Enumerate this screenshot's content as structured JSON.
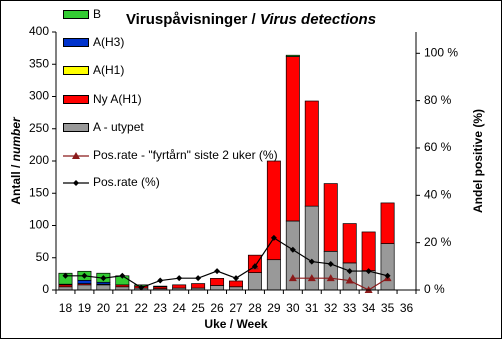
{
  "chart_data": {
    "type": "bar",
    "title": [
      "Viruspåvisninger / ",
      "Virus detections"
    ],
    "y_label": [
      "Antall / ",
      "number"
    ],
    "x_label": "Uke / Week",
    "y2_label": "Andel positive (%)",
    "categories": [
      "18",
      "19",
      "20",
      "21",
      "22",
      "23",
      "24",
      "25",
      "26",
      "27",
      "28",
      "29",
      "30",
      "31",
      "32",
      "33",
      "34",
      "35",
      "36"
    ],
    "ylim": [
      0,
      400
    ],
    "yticks": [
      0,
      50,
      100,
      150,
      200,
      250,
      300,
      350,
      400
    ],
    "y2lim": [
      0,
      109
    ],
    "y2ticks": [
      {
        "value": 0,
        "label": "0 %"
      },
      {
        "value": 20,
        "label": "20 %"
      },
      {
        "value": 40,
        "label": "40 %"
      },
      {
        "value": 60,
        "label": "60 %"
      },
      {
        "value": 80,
        "label": "80 %"
      },
      {
        "value": 100,
        "label": "100 %"
      }
    ],
    "series": [
      {
        "name": "A - utypet",
        "type": "bar",
        "color": "#999999",
        "values": [
          5,
          8,
          8,
          5,
          3,
          2,
          3,
          3,
          7,
          5,
          27,
          47,
          107,
          130,
          60,
          42,
          30,
          72,
          0
        ]
      },
      {
        "name": "Ny A(H1)",
        "type": "bar",
        "color": "#ff0000",
        "values": [
          3,
          2,
          1,
          3,
          3,
          3,
          5,
          7,
          11,
          9,
          27,
          153,
          255,
          163,
          105,
          61,
          60,
          63,
          0
        ]
      },
      {
        "name": "A(H1)",
        "type": "bar",
        "color": "#ffff00",
        "values": [
          0,
          0,
          0,
          0,
          0,
          0,
          0,
          0,
          0,
          0,
          0,
          0,
          0,
          0,
          0,
          0,
          0,
          0,
          0
        ]
      },
      {
        "name": "A(H3)",
        "type": "bar",
        "color": "#0033cc",
        "values": [
          1,
          5,
          3,
          0,
          0,
          0,
          0,
          0,
          0,
          0,
          0,
          0,
          0,
          0,
          0,
          0,
          0,
          0,
          0
        ]
      },
      {
        "name": "B",
        "type": "bar",
        "color": "#33cc33",
        "values": [
          17,
          14,
          14,
          14,
          2,
          1,
          0,
          0,
          0,
          0,
          0,
          0,
          2,
          0,
          0,
          0,
          0,
          0,
          0
        ]
      },
      {
        "name": "Pos.rate - \"fyrtårn\" siste 2 uker (%)",
        "type": "line",
        "marker": "triangle",
        "axis": "y2",
        "color": "#8b1a1a",
        "values": [
          null,
          null,
          null,
          null,
          null,
          null,
          null,
          null,
          null,
          null,
          10,
          null,
          5,
          5,
          5,
          4,
          0,
          5,
          null
        ]
      },
      {
        "name": "Pos.rate (%)",
        "type": "line",
        "marker": "diamond",
        "axis": "y2",
        "color": "#000000",
        "values": [
          6,
          6,
          5,
          6,
          1,
          4,
          5,
          5,
          8,
          5,
          10,
          22,
          17,
          12,
          11,
          8,
          8,
          6,
          null
        ]
      }
    ],
    "legend_order": [
      4,
      3,
      2,
      1,
      0,
      5,
      6
    ]
  }
}
